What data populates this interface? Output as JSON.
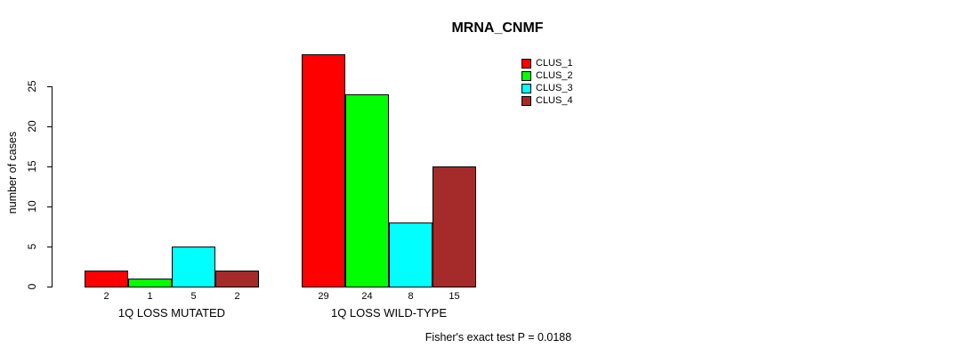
{
  "chart_data": {
    "type": "bar",
    "title": "MRNA_CNMF",
    "ylabel": "number of cases",
    "xlabel": "",
    "categories": [
      "1Q LOSS MUTATED",
      "1Q LOSS WILD-TYPE"
    ],
    "series": [
      {
        "name": "CLUS_1",
        "color": "#FF0000",
        "values": [
          2,
          29
        ]
      },
      {
        "name": "CLUS_2",
        "color": "#00FF00",
        "values": [
          1,
          24
        ]
      },
      {
        "name": "CLUS_3",
        "color": "#00FFFF",
        "values": [
          5,
          8
        ]
      },
      {
        "name": "CLUS_4",
        "color": "#A52A2A",
        "values": [
          2,
          15
        ]
      }
    ],
    "bar_labels": [
      [
        "2",
        "1",
        "5",
        "2"
      ],
      [
        "29",
        "24",
        "8",
        "15"
      ]
    ],
    "yticks": [
      0,
      5,
      10,
      15,
      20,
      25
    ],
    "ylim": [
      0,
      29
    ],
    "grid": false,
    "legend_position": "top-right",
    "annotation": "Fisher's exact test P = 0.0188"
  }
}
